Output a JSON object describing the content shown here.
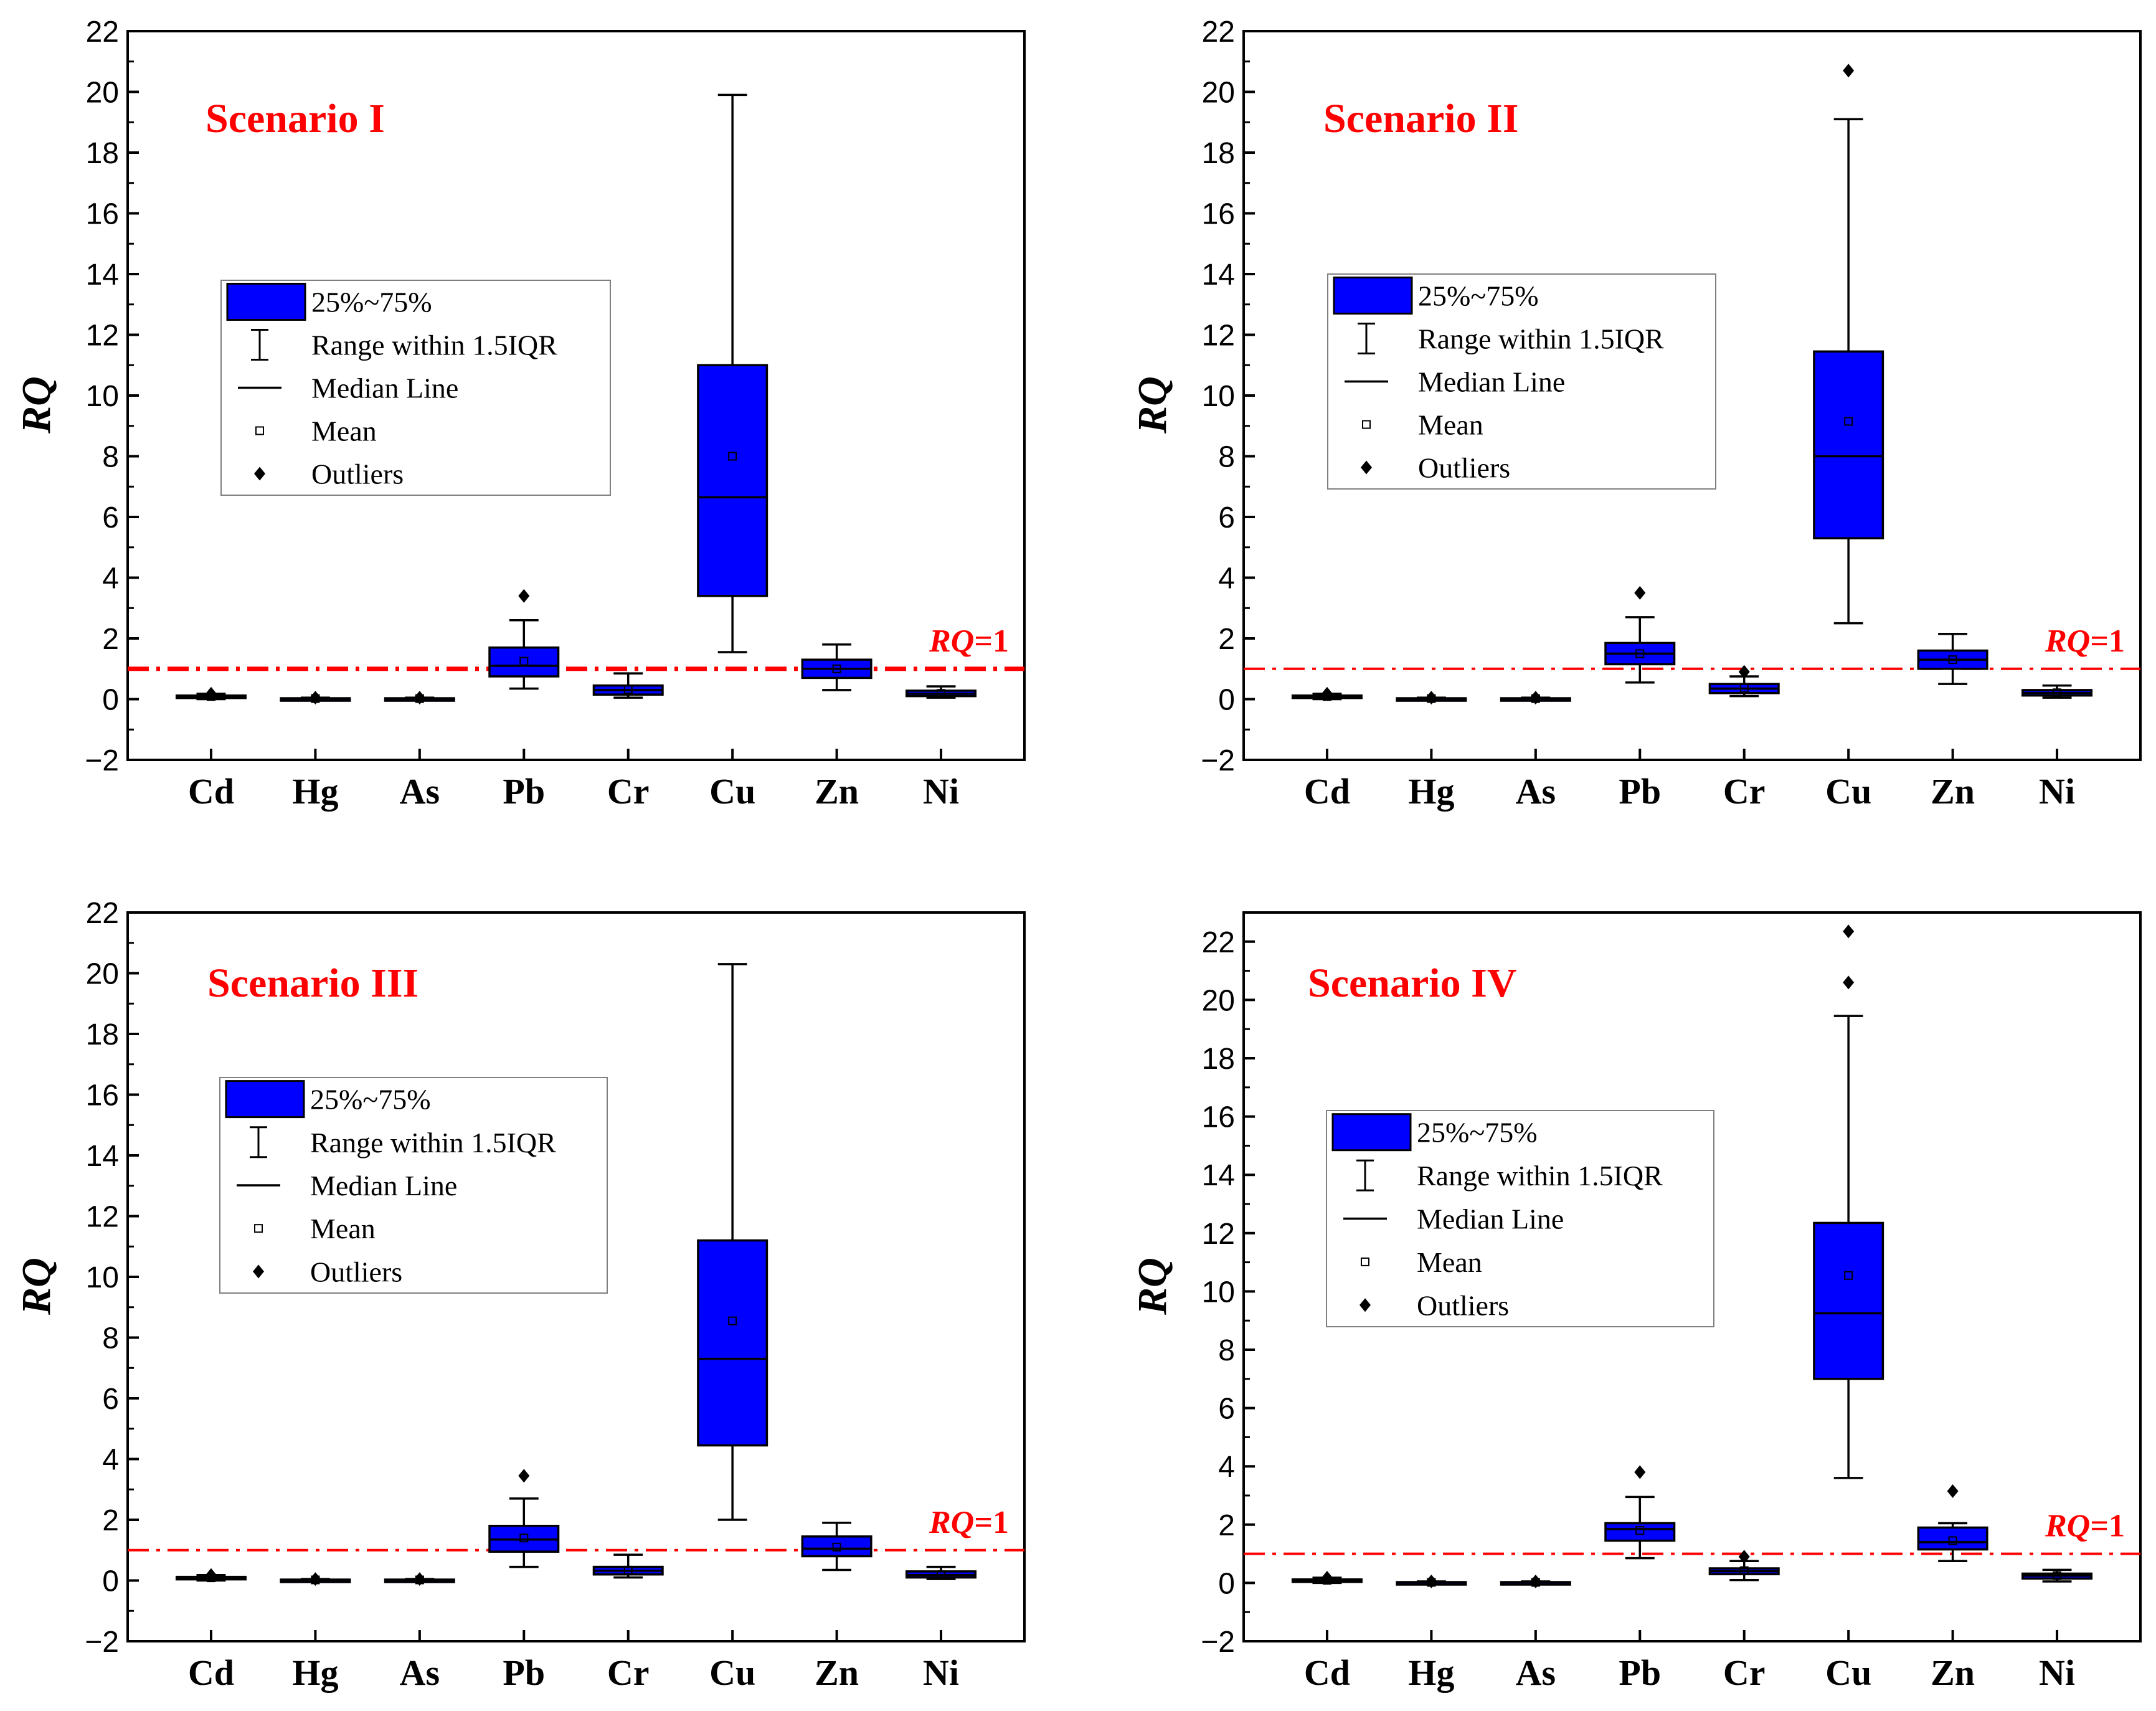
{
  "colors": {
    "box_fill": "#0000ff",
    "reference_line": "#ff0000",
    "title": "#ff0000",
    "axis": "#000000"
  },
  "legend": {
    "iqr": "25%~75%",
    "range": "Range within 1.5IQR",
    "median": "Median Line",
    "mean": "Mean",
    "outliers": "Outliers"
  },
  "chart_data": [
    {
      "type": "box",
      "title": "Scenario I",
      "ylabel": "RQ",
      "ylim": [
        -2,
        22
      ],
      "yticks": [
        -2,
        0,
        2,
        4,
        6,
        8,
        10,
        12,
        14,
        16,
        18,
        20,
        22
      ],
      "ytick_labels": [
        "−2",
        "0",
        "2",
        "4",
        "6",
        "8",
        "10",
        "12",
        "14",
        "16",
        "18",
        "20",
        "22"
      ],
      "categories": [
        "Cd",
        "Hg",
        "As",
        "Pb",
        "Cr",
        "Cu",
        "Zn",
        "Ni"
      ],
      "reference_line": {
        "value": 1,
        "label_italic": "RQ",
        "label_rest": "=1"
      },
      "boxes": [
        {
          "min": 0.0,
          "q1": 0.05,
          "median": 0.08,
          "q3": 0.12,
          "max": 0.18,
          "mean": 0.09,
          "outliers": [
            0.18
          ]
        },
        {
          "min": 0.0,
          "q1": 0.01,
          "median": 0.02,
          "q3": 0.03,
          "max": 0.05,
          "mean": 0.02,
          "outliers": [
            0.05
          ]
        },
        {
          "min": 0.0,
          "q1": 0.01,
          "median": 0.02,
          "q3": 0.03,
          "max": 0.05,
          "mean": 0.02,
          "outliers": [
            0.05
          ]
        },
        {
          "min": 0.35,
          "q1": 0.75,
          "median": 1.1,
          "q3": 1.7,
          "max": 2.6,
          "mean": 1.25,
          "outliers": [
            3.4
          ]
        },
        {
          "min": 0.05,
          "q1": 0.15,
          "median": 0.3,
          "q3": 0.45,
          "max": 0.85,
          "mean": 0.32,
          "outliers": []
        },
        {
          "min": 1.55,
          "q1": 3.4,
          "median": 6.65,
          "q3": 11.0,
          "max": 19.9,
          "mean": 8.0,
          "outliers": []
        },
        {
          "min": 0.3,
          "q1": 0.7,
          "median": 1.0,
          "q3": 1.3,
          "max": 1.8,
          "mean": 1.0,
          "outliers": []
        },
        {
          "min": 0.05,
          "q1": 0.1,
          "median": 0.18,
          "q3": 0.28,
          "max": 0.42,
          "mean": 0.19,
          "outliers": []
        }
      ]
    },
    {
      "type": "box",
      "title": "Scenario II",
      "ylabel": "RQ",
      "ylim": [
        -2,
        22
      ],
      "yticks": [
        -2,
        0,
        2,
        4,
        6,
        8,
        10,
        12,
        14,
        16,
        18,
        20,
        22
      ],
      "ytick_labels": [
        "−2",
        "0",
        "2",
        "4",
        "6",
        "8",
        "10",
        "12",
        "14",
        "16",
        "18",
        "20",
        "22"
      ],
      "categories": [
        "Cd",
        "Hg",
        "As",
        "Pb",
        "Cr",
        "Cu",
        "Zn",
        "Ni"
      ],
      "reference_line": {
        "value": 1,
        "label_italic": "RQ",
        "label_rest": "=1"
      },
      "boxes": [
        {
          "min": 0.0,
          "q1": 0.05,
          "median": 0.08,
          "q3": 0.12,
          "max": 0.18,
          "mean": 0.09,
          "outliers": [
            0.18
          ]
        },
        {
          "min": 0.0,
          "q1": 0.01,
          "median": 0.02,
          "q3": 0.03,
          "max": 0.05,
          "mean": 0.02,
          "outliers": [
            0.05
          ]
        },
        {
          "min": 0.0,
          "q1": 0.01,
          "median": 0.02,
          "q3": 0.03,
          "max": 0.05,
          "mean": 0.02,
          "outliers": [
            0.05
          ]
        },
        {
          "min": 0.55,
          "q1": 1.15,
          "median": 1.5,
          "q3": 1.85,
          "max": 2.7,
          "mean": 1.5,
          "outliers": [
            3.5
          ]
        },
        {
          "min": 0.1,
          "q1": 0.2,
          "median": 0.35,
          "q3": 0.5,
          "max": 0.75,
          "mean": 0.36,
          "outliers": [
            0.9
          ]
        },
        {
          "min": 2.5,
          "q1": 5.3,
          "median": 8.0,
          "q3": 11.45,
          "max": 19.1,
          "mean": 9.15,
          "outliers": [
            20.7
          ]
        },
        {
          "min": 0.5,
          "q1": 1.0,
          "median": 1.3,
          "q3": 1.6,
          "max": 2.15,
          "mean": 1.3,
          "outliers": []
        },
        {
          "min": 0.05,
          "q1": 0.12,
          "median": 0.2,
          "q3": 0.3,
          "max": 0.45,
          "mean": 0.21,
          "outliers": []
        }
      ]
    },
    {
      "type": "box",
      "title": "Scenario III",
      "ylabel": "RQ",
      "ylim": [
        -2,
        22
      ],
      "yticks": [
        -2,
        0,
        2,
        4,
        6,
        8,
        10,
        12,
        14,
        16,
        18,
        20,
        22
      ],
      "ytick_labels": [
        "−2",
        "0",
        "2",
        "4",
        "6",
        "8",
        "10",
        "12",
        "14",
        "16",
        "18",
        "20",
        "22"
      ],
      "categories": [
        "Cd",
        "Hg",
        "As",
        "Pb",
        "Cr",
        "Cu",
        "Zn",
        "Ni"
      ],
      "reference_line": {
        "value": 1,
        "label_italic": "RQ",
        "label_rest": "=1"
      },
      "boxes": [
        {
          "min": 0.0,
          "q1": 0.05,
          "median": 0.08,
          "q3": 0.12,
          "max": 0.18,
          "mean": 0.09,
          "outliers": [
            0.18
          ]
        },
        {
          "min": 0.0,
          "q1": 0.01,
          "median": 0.02,
          "q3": 0.03,
          "max": 0.05,
          "mean": 0.02,
          "outliers": [
            0.05
          ]
        },
        {
          "min": 0.0,
          "q1": 0.01,
          "median": 0.02,
          "q3": 0.03,
          "max": 0.05,
          "mean": 0.02,
          "outliers": [
            0.05
          ]
        },
        {
          "min": 0.45,
          "q1": 0.95,
          "median": 1.35,
          "q3": 1.8,
          "max": 2.7,
          "mean": 1.4,
          "outliers": [
            3.45
          ]
        },
        {
          "min": 0.1,
          "q1": 0.2,
          "median": 0.32,
          "q3": 0.45,
          "max": 0.85,
          "mean": 0.34,
          "outliers": []
        },
        {
          "min": 2.0,
          "q1": 4.45,
          "median": 7.3,
          "q3": 11.2,
          "max": 20.3,
          "mean": 8.55,
          "outliers": []
        },
        {
          "min": 0.35,
          "q1": 0.8,
          "median": 1.05,
          "q3": 1.45,
          "max": 1.9,
          "mean": 1.1,
          "outliers": []
        },
        {
          "min": 0.05,
          "q1": 0.1,
          "median": 0.18,
          "q3": 0.3,
          "max": 0.45,
          "mean": 0.19,
          "outliers": []
        }
      ]
    },
    {
      "type": "box",
      "title": "Scenario IV",
      "ylabel": "RQ",
      "ylim": [
        -2,
        23
      ],
      "yticks": [
        -2,
        0,
        2,
        4,
        6,
        8,
        10,
        12,
        14,
        16,
        18,
        20,
        22
      ],
      "ytick_labels": [
        "−2",
        "0",
        "2",
        "4",
        "6",
        "8",
        "10",
        "12",
        "14",
        "16",
        "18",
        "20",
        "22"
      ],
      "categories": [
        "Cd",
        "Hg",
        "As",
        "Pb",
        "Cr",
        "Cu",
        "Zn",
        "Ni"
      ],
      "reference_line": {
        "value": 1,
        "label_italic": "RQ",
        "label_rest": "=1"
      },
      "boxes": [
        {
          "min": 0.0,
          "q1": 0.05,
          "median": 0.08,
          "q3": 0.12,
          "max": 0.18,
          "mean": 0.09,
          "outliers": [
            0.18
          ]
        },
        {
          "min": 0.0,
          "q1": 0.01,
          "median": 0.02,
          "q3": 0.03,
          "max": 0.05,
          "mean": 0.02,
          "outliers": [
            0.05
          ]
        },
        {
          "min": 0.0,
          "q1": 0.01,
          "median": 0.02,
          "q3": 0.03,
          "max": 0.05,
          "mean": 0.02,
          "outliers": [
            0.05
          ]
        },
        {
          "min": 0.85,
          "q1": 1.45,
          "median": 1.85,
          "q3": 2.05,
          "max": 2.95,
          "mean": 1.8,
          "outliers": [
            3.8
          ]
        },
        {
          "min": 0.1,
          "q1": 0.3,
          "median": 0.4,
          "q3": 0.5,
          "max": 0.75,
          "mean": 0.42,
          "outliers": [
            0.9
          ]
        },
        {
          "min": 3.6,
          "q1": 7.0,
          "median": 9.25,
          "q3": 12.35,
          "max": 19.45,
          "mean": 10.55,
          "outliers": [
            20.6,
            22.35
          ]
        },
        {
          "min": 0.75,
          "q1": 1.15,
          "median": 1.4,
          "q3": 1.9,
          "max": 2.05,
          "mean": 1.45,
          "outliers": [
            3.15
          ]
        },
        {
          "min": 0.05,
          "q1": 0.15,
          "median": 0.25,
          "q3": 0.32,
          "max": 0.45,
          "mean": 0.25,
          "outliers": []
        }
      ]
    }
  ]
}
